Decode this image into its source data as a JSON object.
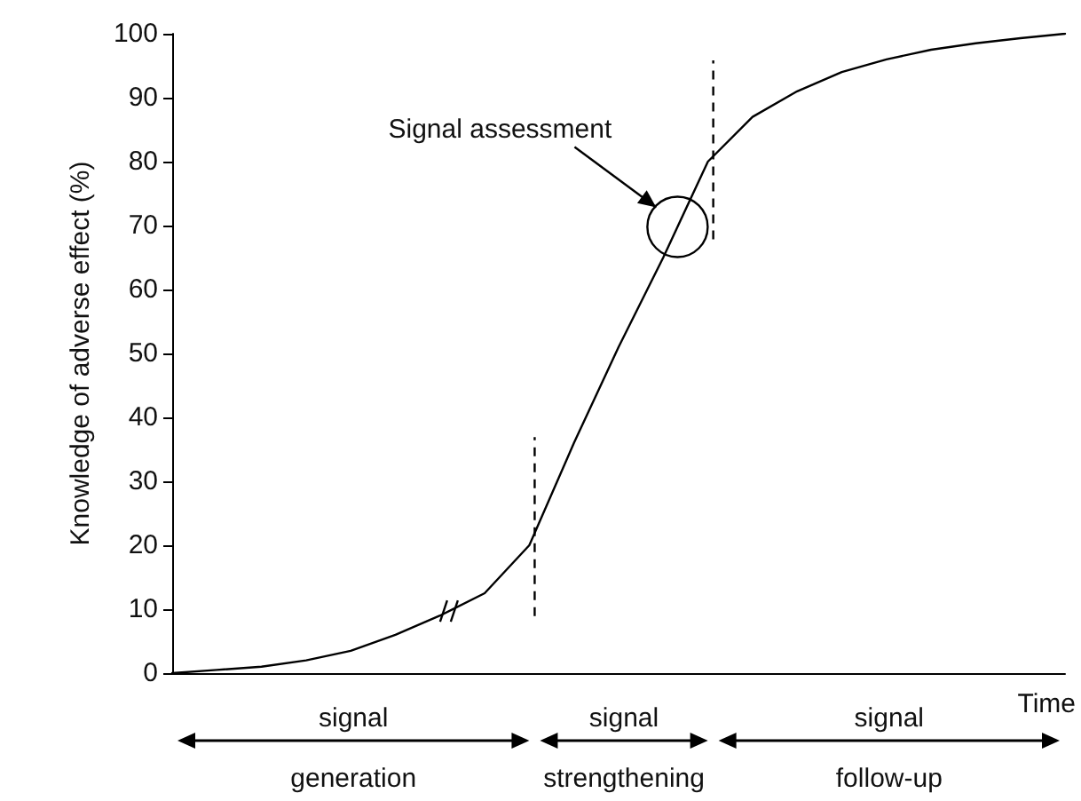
{
  "chart_data": {
    "type": "line",
    "ylabel": "Knowledge of adverse effect (%)",
    "xlabel": "Time",
    "categories": [
      null,
      null,
      null,
      null,
      null,
      null,
      null,
      null,
      null,
      null,
      null,
      null,
      null,
      null,
      null,
      null,
      null,
      null,
      null,
      null,
      null
    ],
    "ylim": [
      0,
      100
    ],
    "yticks": [
      0,
      10,
      20,
      30,
      40,
      50,
      60,
      70,
      80,
      90,
      100
    ],
    "tick_labels": "y",
    "grid": false,
    "marker": "none",
    "series": [
      {
        "color": "#000000",
        "values": [
          0,
          0.5,
          1,
          2,
          3.5,
          6,
          9,
          12.5,
          20,
          36,
          51,
          65,
          80,
          87,
          91,
          94,
          96,
          97.5,
          98.5,
          99.3,
          100
        ]
      }
    ],
    "annotations": [
      "Signal assessment",
      "signal\ngeneration",
      "signal\nstrengthening",
      "signal\nfollow-up"
    ]
  }
}
